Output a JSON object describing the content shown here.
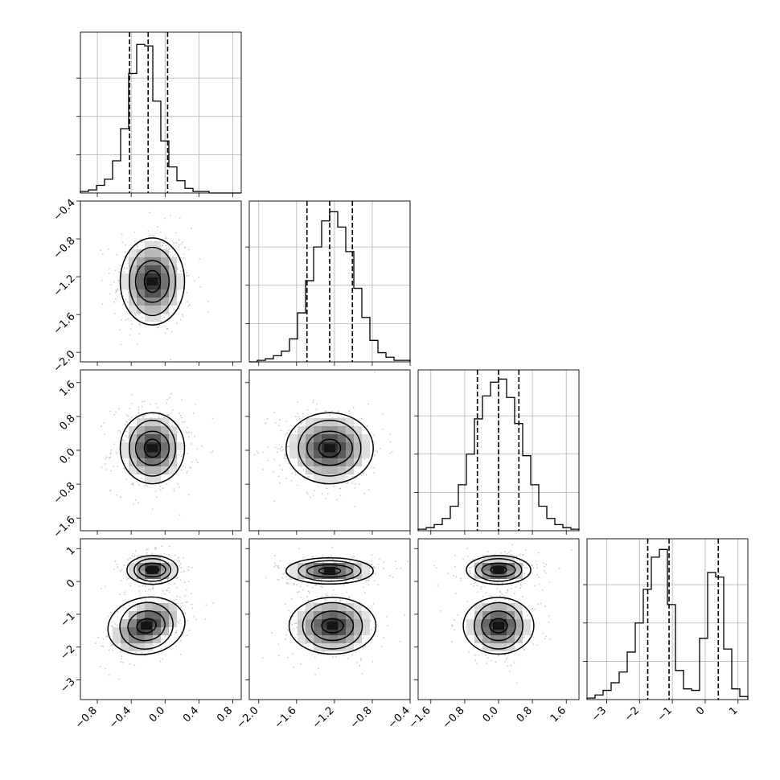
{
  "chart_data": {
    "type": "corner",
    "title": "",
    "parameters": [
      {
        "index": 0,
        "range": [
          -1.0,
          0.9
        ],
        "ticks": [
          -0.8,
          -0.4,
          0.0,
          0.4,
          0.8
        ],
        "tick_labels": [
          "−0.8",
          "−0.4",
          "0.0",
          "0.4",
          "0.8"
        ],
        "quantiles": [
          -0.42,
          -0.2,
          0.03
        ],
        "hist_bins": [
          0.01,
          0.02,
          0.05,
          0.09,
          0.21,
          0.42,
          0.78,
          0.97,
          0.96,
          0.6,
          0.34,
          0.17,
          0.08,
          0.03,
          0.01,
          0.01,
          0.0,
          0.0,
          0.0,
          0.0
        ],
        "hist_ylim": [
          0,
          1.05
        ],
        "hist_yticks": [
          0.25,
          0.5,
          0.75
        ]
      },
      {
        "index": 1,
        "range": [
          -2.1,
          -0.4
        ],
        "ticks": [
          -2.0,
          -1.6,
          -1.2,
          -0.8,
          -0.4
        ],
        "tick_labels": [
          "−2.0",
          "−1.6",
          "−1.2",
          "−0.8",
          "−0.4"
        ],
        "quantiles": [
          -1.49,
          -1.25,
          -1.01
        ],
        "hist_bins": [
          0.0,
          0.01,
          0.02,
          0.04,
          0.07,
          0.15,
          0.32,
          0.53,
          0.75,
          0.92,
          0.98,
          0.88,
          0.72,
          0.48,
          0.29,
          0.14,
          0.06,
          0.03,
          0.01,
          0.01
        ],
        "hist_ylim": [
          0,
          1.05
        ],
        "hist_yticks": [
          0.25,
          0.5,
          0.75
        ]
      },
      {
        "index": 2,
        "range": [
          -1.9,
          1.9
        ],
        "ticks": [
          -1.6,
          -0.8,
          0.0,
          0.8,
          1.6
        ],
        "tick_labels": [
          "−1.6",
          "−0.8",
          "0.0",
          "0.8",
          "1.6"
        ],
        "quantiles": [
          -0.5,
          0.0,
          0.48
        ],
        "hist_bins": [
          0.01,
          0.02,
          0.04,
          0.08,
          0.16,
          0.3,
          0.5,
          0.73,
          0.88,
          0.97,
          0.99,
          0.87,
          0.7,
          0.49,
          0.3,
          0.16,
          0.08,
          0.04,
          0.02,
          0.01
        ],
        "hist_ylim": [
          0,
          1.05
        ],
        "hist_yticks": [
          0.25,
          0.5,
          0.75
        ]
      },
      {
        "index": 3,
        "range": [
          -3.6,
          1.3
        ],
        "ticks": [
          -3,
          -2,
          -1,
          0,
          1
        ],
        "tick_labels": [
          "−3",
          "−2",
          "−1",
          "0",
          "1"
        ],
        "quantiles": [
          -1.75,
          -1.1,
          0.4
        ],
        "hist_bins": [
          0.01,
          0.03,
          0.06,
          0.11,
          0.18,
          0.31,
          0.5,
          0.72,
          0.93,
          0.98,
          0.62,
          0.19,
          0.07,
          0.06,
          0.4,
          0.83,
          0.8,
          0.33,
          0.07,
          0.02
        ],
        "hist_ylim": [
          0,
          1.05
        ],
        "hist_yticks": [
          0.25,
          0.5,
          0.75
        ]
      }
    ],
    "pairs": [
      {
        "row": 1,
        "col": 0,
        "clusters": [
          {
            "mx": -0.15,
            "my": -1.25,
            "sx": 0.19,
            "sy": 0.23,
            "rho": 0.0
          }
        ]
      },
      {
        "row": 2,
        "col": 0,
        "clusters": [
          {
            "mx": -0.15,
            "my": 0.05,
            "sx": 0.19,
            "sy": 0.42,
            "rho": 0.0
          }
        ]
      },
      {
        "row": 2,
        "col": 1,
        "clusters": [
          {
            "mx": -1.25,
            "my": 0.05,
            "sx": 0.23,
            "sy": 0.42,
            "rho": 0.0
          }
        ]
      },
      {
        "row": 3,
        "col": 0,
        "clusters": [
          {
            "mx": -0.15,
            "my": 0.35,
            "sx": 0.15,
            "sy": 0.22,
            "rho": 0.0
          },
          {
            "mx": -0.22,
            "my": -1.35,
            "sx": 0.22,
            "sy": 0.45,
            "rho": 0.45
          }
        ]
      },
      {
        "row": 3,
        "col": 1,
        "clusters": [
          {
            "mx": -1.25,
            "my": 0.32,
            "sx": 0.23,
            "sy": 0.2,
            "rho": 0.0
          },
          {
            "mx": -1.22,
            "my": -1.35,
            "sx": 0.22,
            "sy": 0.45,
            "rho": 0.0
          }
        ]
      },
      {
        "row": 3,
        "col": 2,
        "clusters": [
          {
            "mx": 0.0,
            "my": 0.35,
            "sx": 0.38,
            "sy": 0.22,
            "rho": 0.0
          },
          {
            "mx": 0.0,
            "my": -1.35,
            "sx": 0.4,
            "sy": 0.45,
            "rho": 0.0
          }
        ]
      }
    ],
    "grid": true,
    "contour_levels": [
      0.5,
      1.0,
      1.5,
      2.0
    ]
  }
}
